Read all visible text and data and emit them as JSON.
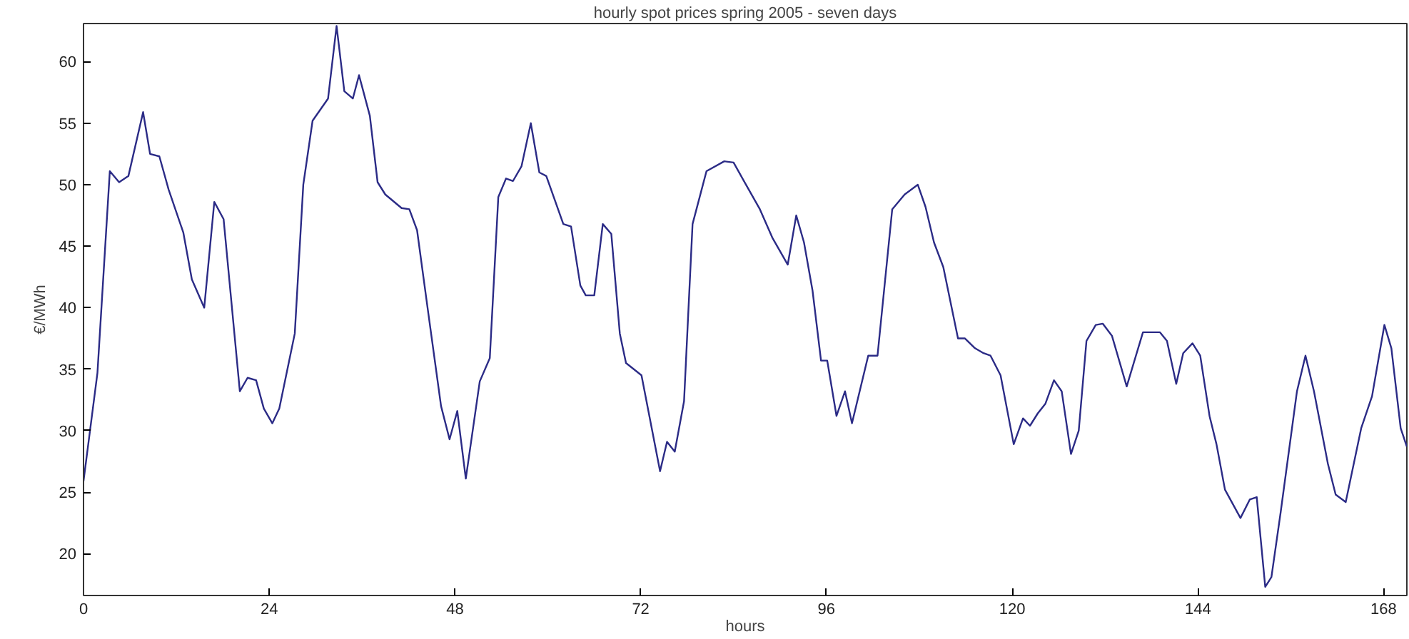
{
  "chart_data": {
    "type": "line",
    "title": "hourly spot prices spring 2005 - seven days",
    "xlabel": "hours",
    "ylabel": "€/MWh",
    "xlim": [
      0,
      171
    ],
    "xticks": [
      0,
      24,
      48,
      72,
      96,
      120,
      144,
      168
    ],
    "ylim": [
      16.6,
      63.1
    ],
    "yticks": [
      20,
      25,
      30,
      35,
      40,
      45,
      50,
      55,
      60
    ],
    "grid": false,
    "marker": "none",
    "line_style": "solid",
    "series": [
      {
        "color": "#2b2b86",
        "x": [
          0,
          1.8,
          3.4,
          4.6,
          5.8,
          7.7,
          8.6,
          9.8,
          11,
          12.9,
          14,
          15.6,
          16.9,
          18.1,
          20.2,
          21.2,
          22.3,
          23.3,
          24.4,
          25.3,
          27.3,
          28.4,
          29.6,
          31.6,
          32.7,
          33.7,
          34.8,
          35.6,
          37,
          38,
          39,
          41.1,
          42.1,
          43.1,
          44.5,
          46.2,
          47.3,
          48.3,
          49.4,
          51.2,
          52.5,
          53.6,
          54.6,
          55.5,
          56.6,
          57.8,
          58.9,
          59.8,
          62,
          63,
          64.2,
          64.9,
          66,
          67.1,
          68.2,
          69.3,
          70.1,
          72.1,
          74.5,
          75.4,
          76.4,
          77.6,
          78.7,
          80.5,
          82.8,
          84,
          85.6,
          87.4,
          89,
          91,
          92.1,
          93.1,
          94.2,
          95.3,
          96.1,
          97.3,
          98.4,
          99.3,
          101.4,
          102.6,
          104.5,
          106.1,
          107.8,
          108.8,
          109.9,
          111.1,
          113,
          113.9,
          115.2,
          116.3,
          117.2,
          118.5,
          120.2,
          121.4,
          122.3,
          123.3,
          124.3,
          125.4,
          126.4,
          127.6,
          128.6,
          129.6,
          130.8,
          131.7,
          132.9,
          134.8,
          136.9,
          139.1,
          140,
          141.2,
          142.1,
          143.3,
          144.3,
          145.5,
          146.4,
          147.5,
          149.5,
          150.7,
          151.6,
          152.7,
          153.5,
          154.7,
          156.8,
          157.9,
          159,
          160.8,
          161.8,
          163.1,
          165.1,
          166.5,
          168.1,
          169,
          170.2,
          171
        ],
        "values": [
          25.9,
          34.7,
          51.1,
          50.2,
          50.7,
          55.9,
          52.5,
          52.3,
          49.6,
          46.1,
          42.3,
          40,
          48.6,
          47.2,
          33.2,
          34.3,
          34.1,
          31.8,
          30.6,
          31.8,
          37.9,
          50,
          55.2,
          57,
          62.9,
          57.6,
          57,
          58.9,
          55.6,
          50.2,
          49.2,
          48.1,
          48,
          46.3,
          39.8,
          32,
          29.3,
          31.6,
          26.1,
          34,
          35.9,
          49,
          50.5,
          50.3,
          51.5,
          55,
          51,
          50.7,
          46.8,
          46.6,
          41.8,
          41,
          41,
          46.8,
          46,
          37.9,
          35.5,
          34.5,
          26.7,
          29.1,
          28.3,
          32.4,
          46.8,
          51.1,
          51.9,
          51.8,
          50,
          48,
          45.7,
          43.5,
          47.5,
          45.3,
          41.4,
          35.7,
          35.7,
          31.2,
          33.2,
          30.6,
          36.1,
          36.1,
          48,
          49.2,
          50,
          48.2,
          45.3,
          43.3,
          37.5,
          37.5,
          36.7,
          36.3,
          36.1,
          34.5,
          28.9,
          31,
          30.4,
          31.4,
          32.2,
          34.1,
          33.2,
          28.1,
          30,
          37.3,
          38.6,
          38.7,
          37.7,
          33.6,
          38,
          38,
          37.3,
          33.8,
          36.3,
          37.1,
          36.1,
          31.2,
          28.9,
          25.2,
          22.9,
          24.4,
          24.6,
          17.3,
          18.1,
          23.4,
          33.2,
          36.1,
          33.2,
          27.3,
          24.8,
          24.2,
          30.2,
          32.8,
          38.6,
          36.7,
          30.2,
          28.7
        ]
      }
    ]
  }
}
